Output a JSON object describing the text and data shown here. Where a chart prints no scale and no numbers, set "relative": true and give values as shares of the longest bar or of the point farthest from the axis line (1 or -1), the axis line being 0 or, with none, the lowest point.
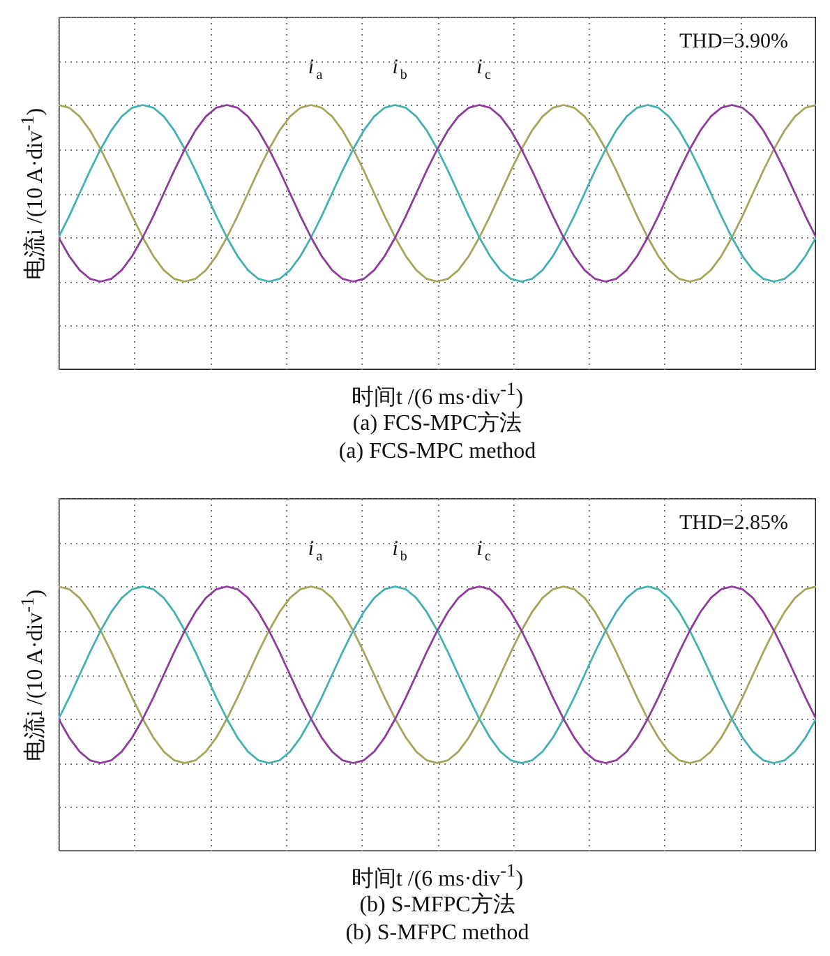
{
  "chart_data": [
    {
      "type": "line",
      "relative": true,
      "grid": true,
      "ylabel": "电流i /(10 A·div$^{-1}$)",
      "xlabel": "时间t /(6 ms·div$^{-1}$)",
      "annotations": [
        "THD=3.90%",
        "(a) FCS-MPC方法",
        "(a) FCS-MPC method"
      ],
      "categories": [
        null,
        null,
        null,
        null,
        null,
        null,
        null,
        null,
        null,
        null,
        null,
        null,
        null,
        null,
        null,
        null,
        null,
        null,
        null,
        null,
        null,
        null,
        null,
        null,
        null,
        null,
        null,
        null,
        null,
        null,
        null,
        null,
        null,
        null,
        null,
        null,
        null,
        null,
        null,
        null,
        null,
        null,
        null,
        null,
        null,
        null,
        null,
        null,
        null,
        null,
        null,
        null,
        null,
        null,
        null,
        null,
        null,
        null,
        null,
        null,
        null,
        null,
        null,
        null,
        null,
        null,
        null,
        null,
        null,
        null,
        null,
        null,
        null
      ],
      "series": [
        {
          "name": "i$_{a}$",
          "color": "#a5a55c",
          "values": [
            1,
            0.97,
            0.87,
            0.71,
            0.5,
            0.26,
            0,
            -0.26,
            -0.5,
            -0.71,
            -0.87,
            -0.97,
            -1,
            -0.97,
            -0.87,
            -0.71,
            -0.5,
            -0.26,
            0,
            0.26,
            0.5,
            0.71,
            0.87,
            0.97,
            1,
            0.97,
            0.87,
            0.71,
            0.5,
            0.26,
            0,
            -0.26,
            -0.5,
            -0.71,
            -0.87,
            -0.97,
            -1,
            -0.97,
            -0.87,
            -0.71,
            -0.5,
            -0.26,
            0,
            0.26,
            0.5,
            0.71,
            0.87,
            0.97,
            1,
            0.97,
            0.87,
            0.71,
            0.5,
            0.26,
            0,
            -0.26,
            -0.5,
            -0.71,
            -0.87,
            -0.97,
            -1,
            -0.97,
            -0.87,
            -0.71,
            -0.5,
            -0.26,
            0,
            0.26,
            0.5,
            0.71,
            0.87,
            0.97,
            1
          ]
        },
        {
          "name": "i$_{b}$",
          "color": "#45b0b0",
          "values": [
            -0.5,
            -0.26,
            0,
            0.26,
            0.5,
            0.71,
            0.87,
            0.97,
            1,
            0.97,
            0.87,
            0.71,
            0.5,
            0.26,
            0,
            -0.26,
            -0.5,
            -0.71,
            -0.87,
            -0.97,
            -1,
            -0.97,
            -0.87,
            -0.71,
            -0.5,
            -0.26,
            0,
            0.26,
            0.5,
            0.71,
            0.87,
            0.97,
            1,
            0.97,
            0.87,
            0.71,
            0.5,
            0.26,
            0,
            -0.26,
            -0.5,
            -0.71,
            -0.87,
            -0.97,
            -1,
            -0.97,
            -0.87,
            -0.71,
            -0.5,
            -0.26,
            0,
            0.26,
            0.5,
            0.71,
            0.87,
            0.97,
            1,
            0.97,
            0.87,
            0.71,
            0.5,
            0.26,
            0,
            -0.26,
            -0.5,
            -0.71,
            -0.87,
            -0.97,
            -1,
            -0.97,
            -0.87,
            -0.71,
            -0.5
          ]
        },
        {
          "name": "i$_{c}$",
          "color": "#8e3b9c",
          "values": [
            -0.5,
            -0.71,
            -0.87,
            -0.97,
            -1,
            -0.97,
            -0.87,
            -0.71,
            -0.5,
            -0.26,
            0,
            0.26,
            0.5,
            0.71,
            0.87,
            0.97,
            1,
            0.97,
            0.87,
            0.71,
            0.5,
            0.26,
            0,
            -0.26,
            -0.5,
            -0.71,
            -0.87,
            -0.97,
            -1,
            -0.97,
            -0.87,
            -0.71,
            -0.5,
            -0.26,
            0,
            0.26,
            0.5,
            0.71,
            0.87,
            0.97,
            1,
            0.97,
            0.87,
            0.71,
            0.5,
            0.26,
            0,
            -0.26,
            -0.5,
            -0.71,
            -0.87,
            -0.97,
            -1,
            -0.97,
            -0.87,
            -0.71,
            -0.5,
            -0.26,
            0,
            0.26,
            0.5,
            0.71,
            0.87,
            0.97,
            1,
            0.97,
            0.87,
            0.71,
            0.5,
            0.26,
            0,
            -0.26,
            -0.5
          ]
        }
      ]
    },
    {
      "type": "line",
      "relative": true,
      "grid": true,
      "ylabel": "电流i /(10 A·div$^{-1}$)",
      "xlabel": "时间t /(6 ms·div$^{-1}$)",
      "annotations": [
        "THD=2.85%",
        "(b) S-MFPC方法",
        "(b) S-MFPC method"
      ],
      "categories": [
        null,
        null,
        null,
        null,
        null,
        null,
        null,
        null,
        null,
        null,
        null,
        null,
        null,
        null,
        null,
        null,
        null,
        null,
        null,
        null,
        null,
        null,
        null,
        null,
        null,
        null,
        null,
        null,
        null,
        null,
        null,
        null,
        null,
        null,
        null,
        null,
        null,
        null,
        null,
        null,
        null,
        null,
        null,
        null,
        null,
        null,
        null,
        null,
        null,
        null,
        null,
        null,
        null,
        null,
        null,
        null,
        null,
        null,
        null,
        null,
        null,
        null,
        null,
        null,
        null,
        null,
        null,
        null,
        null,
        null,
        null,
        null,
        null
      ],
      "series": [
        {
          "name": "i$_{a}$",
          "color": "#a5a55c",
          "values": [
            1,
            0.97,
            0.87,
            0.71,
            0.5,
            0.26,
            0,
            -0.26,
            -0.5,
            -0.71,
            -0.87,
            -0.97,
            -1,
            -0.97,
            -0.87,
            -0.71,
            -0.5,
            -0.26,
            0,
            0.26,
            0.5,
            0.71,
            0.87,
            0.97,
            1,
            0.97,
            0.87,
            0.71,
            0.5,
            0.26,
            0,
            -0.26,
            -0.5,
            -0.71,
            -0.87,
            -0.97,
            -1,
            -0.97,
            -0.87,
            -0.71,
            -0.5,
            -0.26,
            0,
            0.26,
            0.5,
            0.71,
            0.87,
            0.97,
            1,
            0.97,
            0.87,
            0.71,
            0.5,
            0.26,
            0,
            -0.26,
            -0.5,
            -0.71,
            -0.87,
            -0.97,
            -1,
            -0.97,
            -0.87,
            -0.71,
            -0.5,
            -0.26,
            0,
            0.26,
            0.5,
            0.71,
            0.87,
            0.97,
            1
          ]
        },
        {
          "name": "i$_{b}$",
          "color": "#45b0b0",
          "values": [
            -0.5,
            -0.26,
            0,
            0.26,
            0.5,
            0.71,
            0.87,
            0.97,
            1,
            0.97,
            0.87,
            0.71,
            0.5,
            0.26,
            0,
            -0.26,
            -0.5,
            -0.71,
            -0.87,
            -0.97,
            -1,
            -0.97,
            -0.87,
            -0.71,
            -0.5,
            -0.26,
            0,
            0.26,
            0.5,
            0.71,
            0.87,
            0.97,
            1,
            0.97,
            0.87,
            0.71,
            0.5,
            0.26,
            0,
            -0.26,
            -0.5,
            -0.71,
            -0.87,
            -0.97,
            -1,
            -0.97,
            -0.87,
            -0.71,
            -0.5,
            -0.26,
            0,
            0.26,
            0.5,
            0.71,
            0.87,
            0.97,
            1,
            0.97,
            0.87,
            0.71,
            0.5,
            0.26,
            0,
            -0.26,
            -0.5,
            -0.71,
            -0.87,
            -0.97,
            -1,
            -0.97,
            -0.87,
            -0.71,
            -0.5
          ]
        },
        {
          "name": "i$_{c}$",
          "color": "#8e3b9c",
          "values": [
            -0.5,
            -0.71,
            -0.87,
            -0.97,
            -1,
            -0.97,
            -0.87,
            -0.71,
            -0.5,
            -0.26,
            0,
            0.26,
            0.5,
            0.71,
            0.87,
            0.97,
            1,
            0.97,
            0.87,
            0.71,
            0.5,
            0.26,
            0,
            -0.26,
            -0.5,
            -0.71,
            -0.87,
            -0.97,
            -1,
            -0.97,
            -0.87,
            -0.71,
            -0.5,
            -0.26,
            0,
            0.26,
            0.5,
            0.71,
            0.87,
            0.97,
            1,
            0.97,
            0.87,
            0.71,
            0.5,
            0.26,
            0,
            -0.26,
            -0.5,
            -0.71,
            -0.87,
            -0.97,
            -1,
            -0.97,
            -0.87,
            -0.71,
            -0.5,
            -0.26,
            0,
            0.26,
            0.5,
            0.71,
            0.87,
            0.97,
            1,
            0.97,
            0.87,
            0.71,
            0.5,
            0.26,
            0,
            -0.26,
            -0.5
          ]
        }
      ]
    }
  ]
}
